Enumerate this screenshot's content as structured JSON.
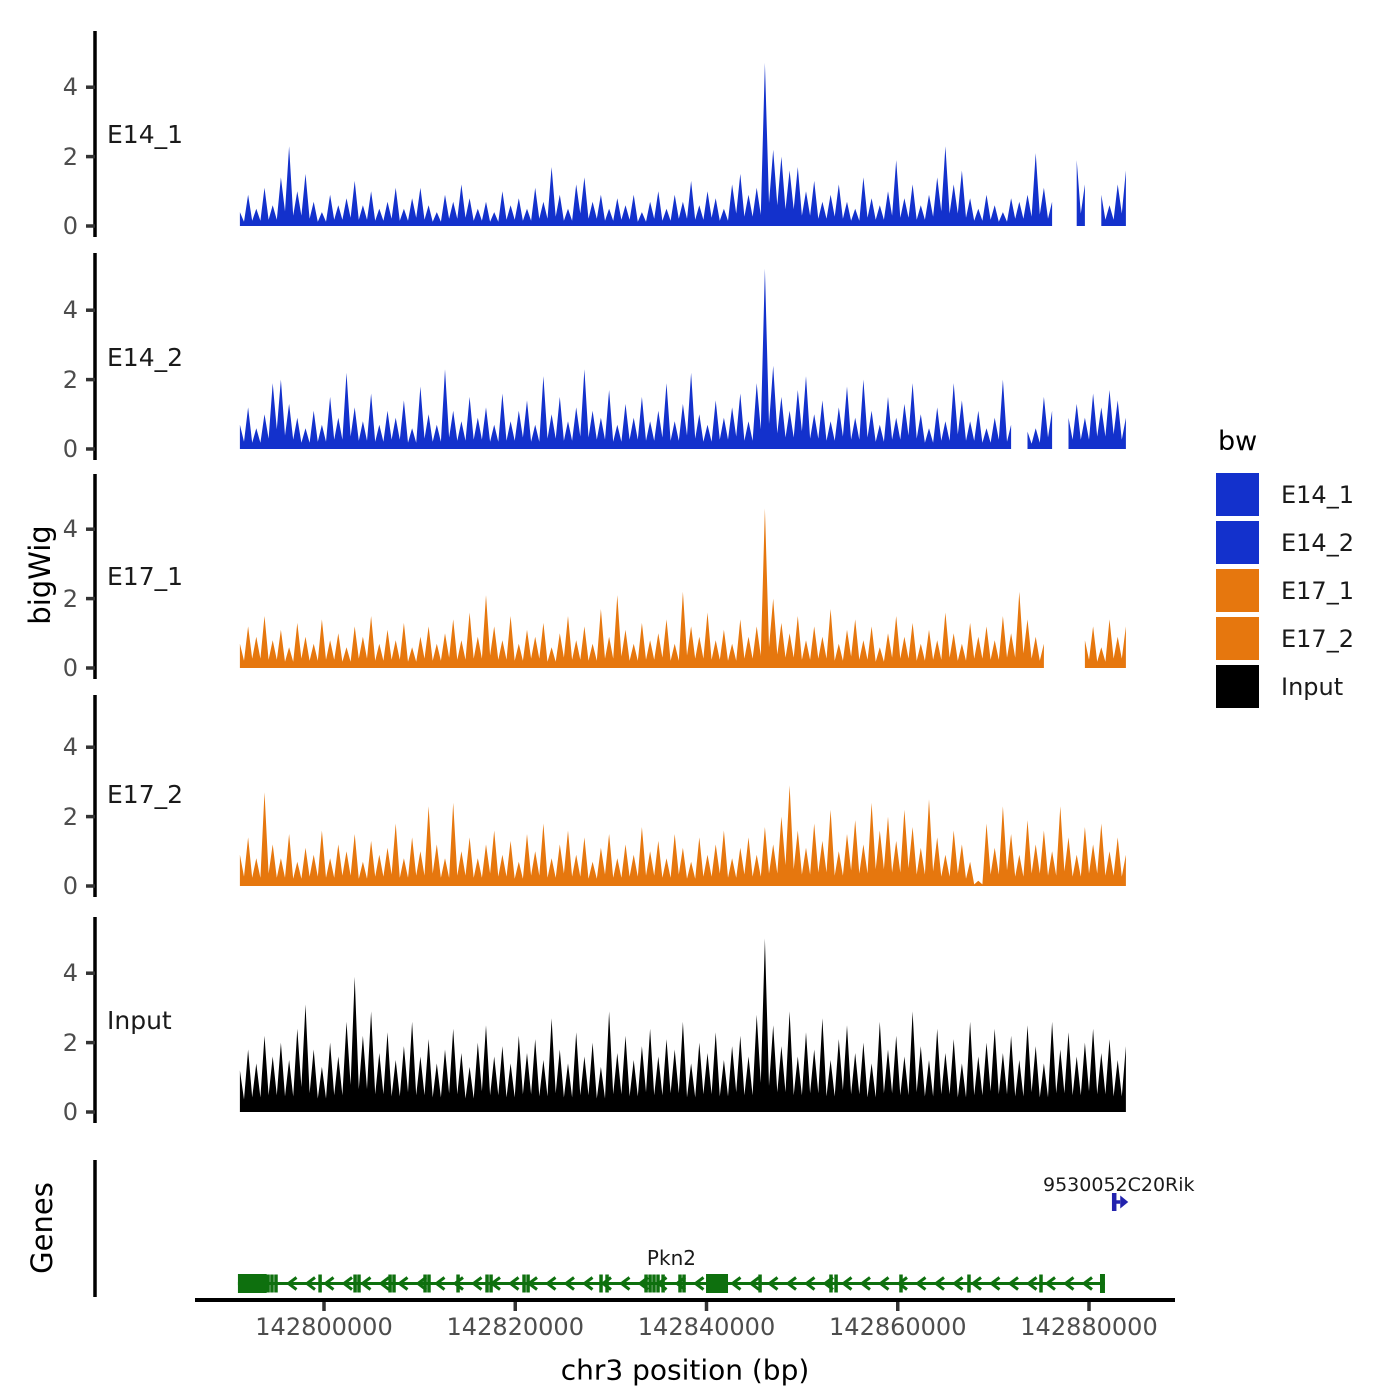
{
  "y_axis_title": "bigWig",
  "genes_axis_title": "Genes",
  "x_axis": {
    "title": "chr3 position (bp)",
    "ticks": [
      142800000,
      142820000,
      142840000,
      142860000,
      142880000
    ],
    "tick_labels": [
      "142800000",
      "142820000",
      "142840000",
      "142860000",
      "142880000"
    ]
  },
  "legend": {
    "title": "bw",
    "items": [
      {
        "label": "E14_1",
        "color": "#1331CC"
      },
      {
        "label": "E14_2",
        "color": "#1331CC"
      },
      {
        "label": "E17_1",
        "color": "#E6770E"
      },
      {
        "label": "E17_2",
        "color": "#E6770E"
      },
      {
        "label": "Input",
        "color": "#000000"
      }
    ]
  },
  "chart_data": {
    "type": "area",
    "region": {
      "chrom": "chr3",
      "start": 142791200,
      "end": 142883900
    },
    "y_ticks": [
      0,
      2,
      4
    ],
    "y_tick_labels": [
      "0",
      "2",
      "4"
    ],
    "tracks": [
      {
        "name": "E14_1",
        "label": "E14_1",
        "color": "#1331CC",
        "start_bp": 142791200,
        "step_bp": 858,
        "values": [
          0.4,
          0.9,
          0.5,
          1.1,
          0.6,
          1.4,
          2.3,
          1.0,
          1.5,
          0.7,
          0.4,
          0.9,
          0.6,
          0.8,
          1.3,
          0.6,
          1.0,
          0.5,
          0.7,
          1.1,
          0.5,
          0.8,
          1.1,
          0.6,
          0.4,
          0.9,
          0.7,
          1.2,
          0.8,
          0.5,
          0.7,
          0.4,
          1.0,
          0.6,
          0.8,
          0.5,
          1.1,
          0.7,
          1.7,
          0.9,
          0.5,
          1.2,
          1.4,
          0.7,
          0.9,
          0.5,
          0.8,
          0.6,
          0.9,
          0.4,
          0.7,
          1.0,
          0.5,
          0.9,
          0.7,
          1.3,
          0.6,
          1.0,
          0.8,
          0.5,
          1.2,
          1.5,
          0.9,
          1.1,
          4.7,
          2.2,
          2.0,
          1.6,
          1.7,
          1.0,
          1.3,
          0.7,
          0.9,
          1.2,
          0.7,
          0.5,
          1.4,
          0.8,
          0.6,
          1.0,
          1.9,
          0.8,
          1.2,
          0.6,
          0.9,
          1.4,
          2.3,
          1.2,
          1.6,
          0.8,
          0.5,
          0.9,
          0.6,
          0.4,
          0.8,
          0.7,
          0.9,
          2.1,
          1.1,
          0.7,
          0,
          0,
          1.9,
          1.2,
          0,
          0.9,
          0.6,
          1.2,
          1.6
        ]
      },
      {
        "name": "E14_2",
        "label": "E14_2",
        "color": "#1331CC",
        "start_bp": 142791200,
        "step_bp": 858,
        "values": [
          0.7,
          1.2,
          0.6,
          1.0,
          1.9,
          2.0,
          1.3,
          0.9,
          0.6,
          1.1,
          0.7,
          1.5,
          0.9,
          2.2,
          1.2,
          0.8,
          1.6,
          0.7,
          1.1,
          0.9,
          1.4,
          0.6,
          1.8,
          1.0,
          0.7,
          2.3,
          1.1,
          0.8,
          1.5,
          0.9,
          1.2,
          0.7,
          1.6,
          0.8,
          1.1,
          1.4,
          0.7,
          2.1,
          1.0,
          1.5,
          0.8,
          1.2,
          2.3,
          1.1,
          0.9,
          1.7,
          0.7,
          1.3,
          0.9,
          1.5,
          0.8,
          1.1,
          1.9,
          0.8,
          1.3,
          2.2,
          1.0,
          0.7,
          1.4,
          0.9,
          1.2,
          1.6,
          0.8,
          1.9,
          5.2,
          2.4,
          1.5,
          1.1,
          1.7,
          2.1,
          1.0,
          1.4,
          0.8,
          1.2,
          1.8,
          0.9,
          2.0,
          1.1,
          0.7,
          1.5,
          0.9,
          1.3,
          1.9,
          1.0,
          0.6,
          1.2,
          0.8,
          1.9,
          1.4,
          0.8,
          1.1,
          0.6,
          0.9,
          2.0,
          0.7,
          0,
          0.5,
          0.6,
          1.5,
          1.1,
          0,
          0.9,
          1.3,
          0.9,
          1.6,
          1.2,
          1.7,
          1.4,
          0.9
        ]
      },
      {
        "name": "E17_1",
        "label": "E17_1",
        "color": "#E6770E",
        "start_bp": 142791200,
        "step_bp": 858,
        "values": [
          0.7,
          1.2,
          0.9,
          1.5,
          0.8,
          1.1,
          0.6,
          1.3,
          0.9,
          0.7,
          1.4,
          0.8,
          1.0,
          0.6,
          1.2,
          0.9,
          1.5,
          0.7,
          1.1,
          0.8,
          1.3,
          0.6,
          0.9,
          1.2,
          0.7,
          1.0,
          1.4,
          0.8,
          1.6,
          0.9,
          2.1,
          1.2,
          0.8,
          1.5,
          0.7,
          1.1,
          0.9,
          1.3,
          0.6,
          1.0,
          1.5,
          0.8,
          1.2,
          0.7,
          1.7,
          0.9,
          2.1,
          1.1,
          0.7,
          1.3,
          0.8,
          1.0,
          1.4,
          0.7,
          2.2,
          1.2,
          0.9,
          1.6,
          0.8,
          1.1,
          0.7,
          1.4,
          0.9,
          1.2,
          4.6,
          2.0,
          1.3,
          1.0,
          1.5,
          0.8,
          1.2,
          0.9,
          1.7,
          0.7,
          1.1,
          1.4,
          0.8,
          1.2,
          0.6,
          1.0,
          1.5,
          0.9,
          1.3,
          0.7,
          1.1,
          0.8,
          1.6,
          1.0,
          0.7,
          1.3,
          0.9,
          1.2,
          0.8,
          1.5,
          1.0,
          2.2,
          1.4,
          0.9,
          0.7,
          0,
          0,
          0,
          0,
          0.8,
          1.2,
          0.6,
          1.4,
          0.9,
          1.2
        ]
      },
      {
        "name": "E17_2",
        "label": "E17_2",
        "color": "#E6770E",
        "start_bp": 142791200,
        "step_bp": 858,
        "values": [
          0.9,
          1.4,
          0.8,
          2.7,
          1.2,
          0.8,
          1.5,
          0.7,
          1.1,
          0.9,
          1.6,
          0.8,
          1.2,
          1.0,
          1.5,
          0.7,
          1.3,
          0.9,
          1.1,
          1.8,
          0.8,
          1.4,
          1.0,
          2.3,
          1.2,
          0.8,
          2.4,
          1.0,
          1.4,
          0.8,
          1.2,
          1.6,
          0.9,
          1.3,
          0.7,
          1.5,
          1.0,
          1.8,
          0.8,
          1.2,
          1.6,
          0.9,
          1.4,
          0.7,
          1.1,
          1.5,
          0.8,
          1.2,
          0.9,
          1.7,
          1.0,
          1.3,
          0.8,
          1.5,
          1.1,
          0.7,
          1.4,
          0.9,
          1.2,
          1.6,
          0.8,
          1.1,
          1.4,
          0.9,
          1.7,
          1.2,
          2.0,
          2.9,
          1.6,
          1.1,
          1.8,
          1.3,
          2.2,
          1.0,
          1.5,
          1.9,
          1.2,
          2.4,
          1.6,
          2.0,
          1.3,
          2.2,
          1.7,
          1.1,
          2.5,
          1.4,
          0.9,
          1.6,
          1.2,
          0.7,
          0.15,
          1.8,
          1.1,
          2.3,
          1.5,
          0.9,
          1.9,
          1.2,
          1.6,
          1.0,
          2.3,
          1.4,
          0.9,
          1.7,
          1.2,
          1.8,
          1.0,
          1.4,
          0.9
        ]
      },
      {
        "name": "Input",
        "label": "Input",
        "color": "#000000",
        "start_bp": 142791200,
        "step_bp": 858,
        "values": [
          1.2,
          1.8,
          1.4,
          2.2,
          1.6,
          2.0,
          1.5,
          2.4,
          3.1,
          1.8,
          1.3,
          2.0,
          1.6,
          2.6,
          3.9,
          2.2,
          2.9,
          1.7,
          2.3,
          1.5,
          1.9,
          2.6,
          1.6,
          2.1,
          1.4,
          1.8,
          2.4,
          1.7,
          1.3,
          2.0,
          2.5,
          1.6,
          1.9,
          1.4,
          2.2,
          1.7,
          2.1,
          1.5,
          2.7,
          1.8,
          1.4,
          2.3,
          1.6,
          2.0,
          1.3,
          2.9,
          1.7,
          2.2,
          1.5,
          1.9,
          2.4,
          1.6,
          2.1,
          1.8,
          2.6,
          1.4,
          2.0,
          1.7,
          2.3,
          1.5,
          1.9,
          2.2,
          1.6,
          2.8,
          5.0,
          2.5,
          1.9,
          2.9,
          1.6,
          2.3,
          1.8,
          2.7,
          1.5,
          2.1,
          2.5,
          1.7,
          2.0,
          1.4,
          2.6,
          1.8,
          2.2,
          1.6,
          2.9,
          1.9,
          1.5,
          2.4,
          1.7,
          2.1,
          1.4,
          2.6,
          1.6,
          2.0,
          2.4,
          1.7,
          2.2,
          1.5,
          2.5,
          1.9,
          1.4,
          2.6,
          1.8,
          2.3,
          1.6,
          2.0,
          2.4,
          1.7,
          2.1,
          1.5,
          1.9
        ]
      }
    ],
    "genes": [
      {
        "name": "Pkn2",
        "strand": "-",
        "color": "#0E700E",
        "start": 142791000,
        "end": 142881670,
        "thick_boxes": [
          [
            142791000,
            142794000
          ],
          [
            142839950,
            142842250
          ],
          [
            142881150,
            142881670
          ]
        ],
        "exons": [
          142794150,
          142794560,
          142794980,
          142799590,
          142803250,
          142803660,
          142806910,
          142807320,
          142810570,
          142810980,
          142814020,
          142817050,
          142817470,
          142820920,
          142821340,
          142828970,
          142829600,
          142833680,
          142834100,
          142834510,
          142834930,
          142835460,
          142837230,
          142837650,
          142845600,
          142853020,
          142853550,
          142860340,
          142867450,
          142874980
        ]
      },
      {
        "name": "9530052C20Rik",
        "strand": "+",
        "color": "#2323AE",
        "start": 142882400,
        "end": 142884000
      }
    ]
  }
}
